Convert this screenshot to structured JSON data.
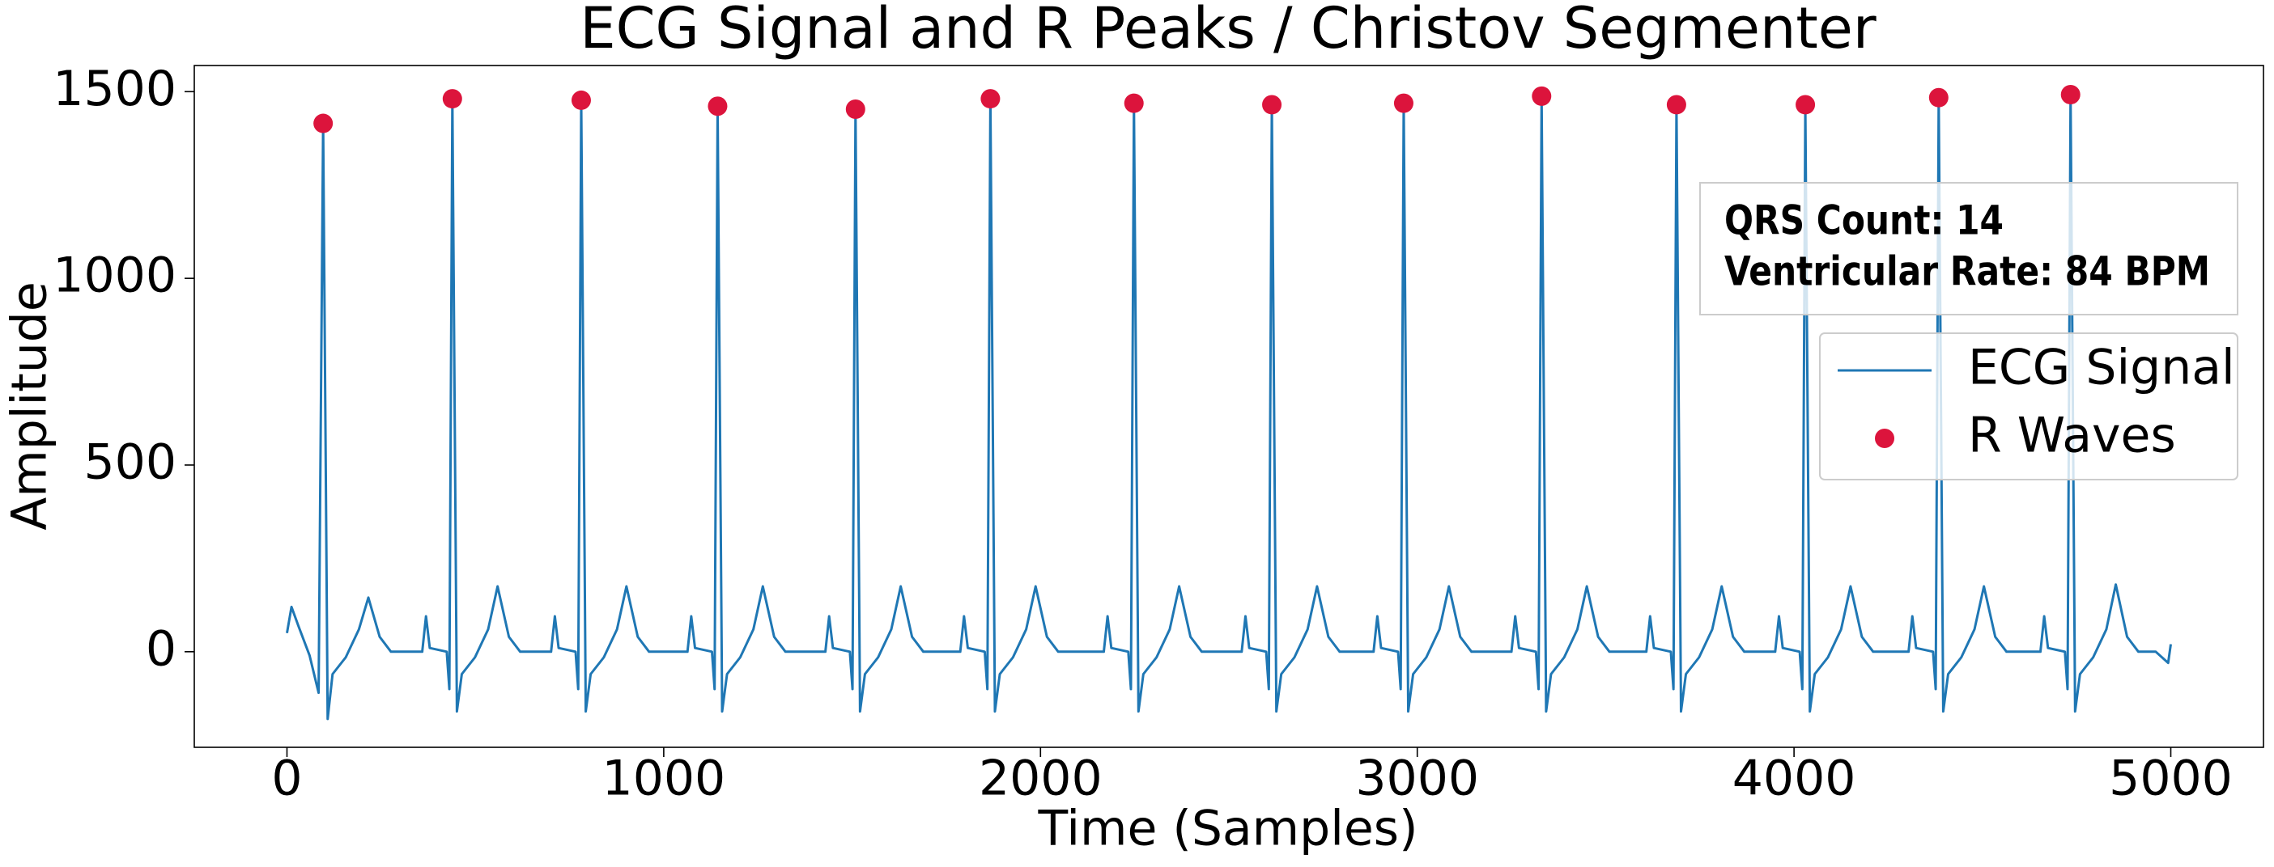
{
  "chart_data": {
    "type": "line",
    "title": "ECG Signal and R Peaks / Christov Segmenter",
    "x_label": "Time (Samples)",
    "y_label": "Amplitude",
    "xlim": [
      -246,
      5246
    ],
    "ylim": [
      -256,
      1570
    ],
    "xticks": [
      0,
      1000,
      2000,
      3000,
      4000,
      5000
    ],
    "yticks": [
      0,
      500,
      1000,
      1500
    ],
    "grid": false,
    "legend_position": "center right",
    "annotation": [
      "QRS Count: 14",
      "Ventricular Rate: 84 BPM"
    ],
    "series": [
      {
        "name": "ECG Signal",
        "type": "line",
        "color": "#1f77b4",
        "x": [
          0,
          12,
          30,
          60,
          84,
          96,
          108,
          121,
          156,
          191,
          216,
          246,
          276,
          359,
          369,
          379,
          424,
          431,
          439,
          451,
          464,
          499,
          534,
          559,
          589,
          619,
          701,
          711,
          721,
          766,
          773,
          781,
          793,
          806,
          841,
          876,
          901,
          931,
          961,
          1063,
          1073,
          1083,
          1128,
          1135,
          1143,
          1155,
          1168,
          1203,
          1238,
          1263,
          1293,
          1323,
          1429,
          1439,
          1449,
          1494,
          1501,
          1509,
          1521,
          1534,
          1569,
          1604,
          1629,
          1659,
          1689,
          1787,
          1797,
          1807,
          1852,
          1859,
          1867,
          1879,
          1892,
          1927,
          1962,
          1987,
          2017,
          2047,
          2168,
          2178,
          2188,
          2233,
          2240,
          2248,
          2260,
          2273,
          2308,
          2343,
          2368,
          2398,
          2428,
          2534,
          2544,
          2554,
          2599,
          2606,
          2614,
          2626,
          2639,
          2674,
          2709,
          2734,
          2764,
          2794,
          2884,
          2894,
          2904,
          2949,
          2956,
          2964,
          2976,
          2989,
          3024,
          3059,
          3084,
          3114,
          3144,
          3250,
          3260,
          3270,
          3315,
          3322,
          3330,
          3342,
          3355,
          3390,
          3425,
          3450,
          3480,
          3510,
          3608,
          3618,
          3628,
          3673,
          3680,
          3688,
          3700,
          3713,
          3748,
          3783,
          3808,
          3838,
          3868,
          3950,
          3960,
          3970,
          4015,
          4022,
          4030,
          4042,
          4055,
          4090,
          4125,
          4150,
          4180,
          4210,
          4304,
          4314,
          4324,
          4369,
          4376,
          4384,
          4396,
          4409,
          4444,
          4479,
          4504,
          4534,
          4564,
          4654,
          4664,
          4674,
          4719,
          4726,
          4734,
          4746,
          4759,
          4794,
          4829,
          4854,
          4884,
          4914,
          4960,
          4993,
          5000
        ],
        "values": [
          50,
          120,
          70,
          -10,
          -110,
          1415,
          -180,
          -60,
          -15,
          60,
          145,
          40,
          0,
          0,
          95,
          10,
          0,
          -100,
          1481,
          -160,
          -60,
          -15,
          60,
          175,
          40,
          0,
          0,
          95,
          10,
          0,
          -100,
          1477,
          -160,
          -60,
          -15,
          60,
          175,
          40,
          0,
          0,
          95,
          10,
          0,
          -100,
          1461,
          -160,
          -60,
          -15,
          60,
          175,
          40,
          0,
          0,
          95,
          10,
          0,
          -100,
          1453,
          -160,
          -60,
          -15,
          60,
          175,
          40,
          0,
          0,
          95,
          10,
          0,
          -100,
          1481,
          -160,
          -60,
          -15,
          60,
          175,
          40,
          0,
          0,
          95,
          10,
          0,
          -100,
          1469,
          -160,
          -60,
          -15,
          60,
          175,
          40,
          0,
          0,
          95,
          10,
          0,
          -100,
          1465,
          -160,
          -60,
          -15,
          60,
          175,
          40,
          0,
          0,
          95,
          10,
          0,
          -100,
          1469,
          -160,
          -60,
          -15,
          60,
          175,
          40,
          0,
          0,
          95,
          10,
          0,
          -100,
          1488,
          -160,
          -60,
          -15,
          60,
          175,
          40,
          0,
          0,
          95,
          10,
          0,
          -100,
          1465,
          -160,
          -60,
          -15,
          60,
          175,
          40,
          0,
          0,
          95,
          10,
          0,
          -100,
          1465,
          -160,
          -60,
          -15,
          60,
          175,
          40,
          0,
          0,
          95,
          10,
          0,
          -100,
          1484,
          -160,
          -60,
          -15,
          60,
          175,
          40,
          0,
          0,
          95,
          10,
          0,
          -100,
          1492,
          -160,
          -60,
          -15,
          60,
          180,
          40,
          0,
          0,
          -30,
          20
        ]
      },
      {
        "name": "R Waves",
        "type": "scatter",
        "color": "#dc143c",
        "x": [
          96,
          439,
          781,
          1143,
          1509,
          1867,
          2248,
          2614,
          2964,
          3330,
          3688,
          4030,
          4384,
          4734
        ],
        "values": [
          1415,
          1481,
          1477,
          1461,
          1453,
          1481,
          1469,
          1465,
          1469,
          1488,
          1465,
          1465,
          1484,
          1492
        ]
      }
    ]
  }
}
